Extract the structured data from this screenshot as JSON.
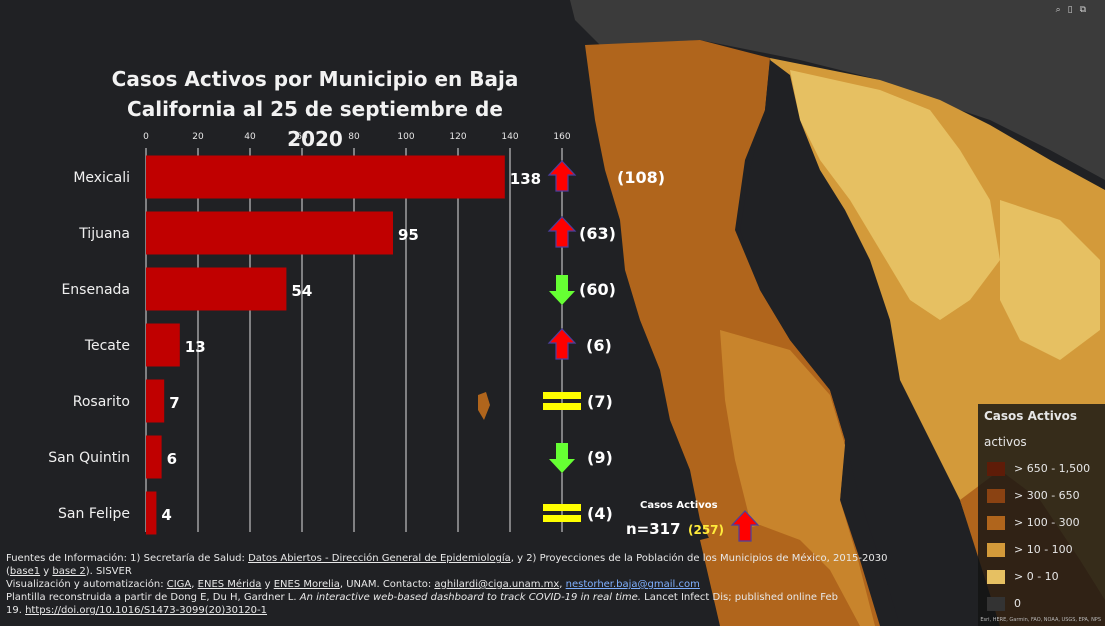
{
  "title": "Casos Activos por Municipio en Baja California al 25 de septiembre de 2020",
  "map_tools": [
    "⌕",
    "▯",
    "⧉"
  ],
  "chart_data": {
    "type": "bar",
    "orientation": "horizontal",
    "title": "Casos Activos por Municipio en Baja California al 25 de septiembre de 2020",
    "categories": [
      "Mexicali",
      "Tijuana",
      "Ensenada",
      "Tecate",
      "Rosarito",
      "San Quintin",
      "San Felipe"
    ],
    "values": [
      138,
      95,
      54,
      13,
      7,
      6,
      4
    ],
    "previous": [
      "(108)",
      "(63)",
      "(60)",
      "(6)",
      "(7)",
      "(9)",
      "(4)"
    ],
    "trend": [
      "up",
      "up",
      "down",
      "up",
      "equal",
      "down",
      "equal"
    ],
    "xlim": [
      0,
      160
    ],
    "xticks": [
      0,
      20,
      40,
      60,
      80,
      100,
      120,
      140,
      160
    ],
    "bar_color": "#c00000",
    "grid": true,
    "colors": {
      "up": "#ff0000",
      "down": "#66ff33",
      "equal": "#ffff00",
      "label": "#ffffff"
    }
  },
  "total": {
    "label": "Casos Activos",
    "value": "n=317",
    "previous": "(257)",
    "trend": "up"
  },
  "legend": {
    "title": "Casos Activos",
    "subtitle": "activos",
    "items": [
      {
        "label": "> 650 - 1,500",
        "color": "#5e1c08"
      },
      {
        "label": "> 300 - 650",
        "color": "#8a4212"
      },
      {
        "label": "> 100 - 300",
        "color": "#b0651c"
      },
      {
        "label": "> 10 - 100",
        "color": "#d39a3a"
      },
      {
        "label": "> 0 - 10",
        "color": "#e6c062"
      },
      {
        "label": "0",
        "color": "#333333"
      }
    ]
  },
  "attribution": "Esri, HERE, Garmin, FAO, NOAA, USGS, EPA, NPS",
  "footer": {
    "line1_a": "Fuentes de Información: 1) Secretaría de Salud: ",
    "line1_link": "Datos Abiertos - Dirección General de Epidemiología",
    "line1_b": ", y 2) Proyecciones de la Población de los Municipios de México, 2015-2030",
    "line2_a": "(",
    "line2_link1": "base1",
    "line2_b": " y ",
    "line2_link2": "base 2",
    "line2_c": "). SISVER",
    "line3_a": " Visualización y automatización: ",
    "line3_link1": "CIGA",
    "line3_b": ", ",
    "line3_link2": "ENES Mérida",
    "line3_c": " y ",
    "line3_link3": "ENES Morelia",
    "line3_d": ", UNAM. Contacto: ",
    "line3_link4": "aghilardi@ciga.unam.mx",
    "line3_e": ", ",
    "line3_link5": "nestorher.baja@gmail.com",
    "line4_a": " Plantilla reconstruida a partir de Dong E, Du H, Gardner L. ",
    "line4_i": "An interactive web-based dashboard to track COVID-19 in real time.",
    "line4_b": " Lancet Infect Dis; published online Feb",
    "line5_a": "19. ",
    "line5_link": "https://doi.org/10.1016/S1473-3099(20)30120-1"
  }
}
